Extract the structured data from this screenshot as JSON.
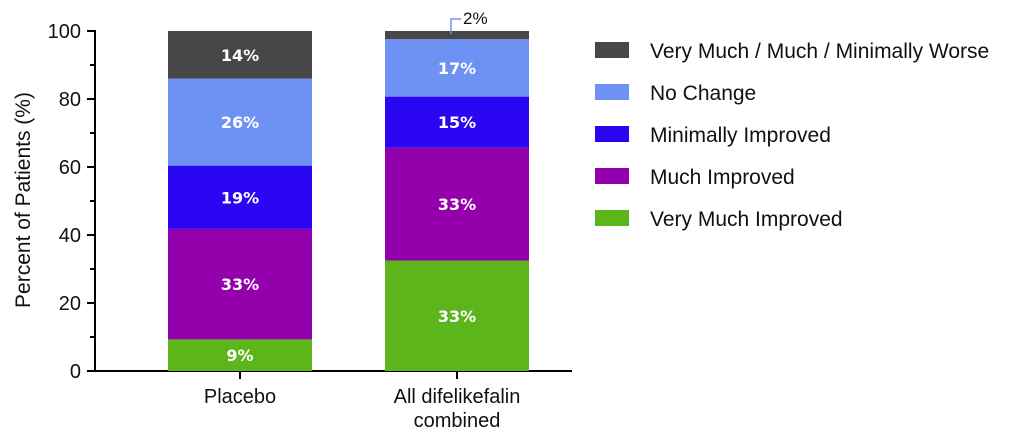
{
  "chart_data": {
    "type": "bar",
    "stacked": true,
    "orientation": "vertical",
    "ylabel": "Percent of Patients (%)",
    "ylim": [
      0,
      100
    ],
    "yticks": [
      0,
      20,
      40,
      60,
      80,
      100
    ],
    "categories": [
      [
        "Placebo"
      ],
      [
        "All difelikefalin",
        "combined"
      ]
    ],
    "series": [
      {
        "name": "Very Much Improved",
        "color": "#5db51c",
        "values": [
          9.3,
          32.5
        ],
        "labels": [
          "9%",
          "33%"
        ]
      },
      {
        "name": "Much Improved",
        "color": "#9400ac",
        "values": [
          32.5,
          33.2
        ],
        "labels": [
          "33%",
          "33%"
        ]
      },
      {
        "name": "Minimally Improved",
        "color": "#2b06f2",
        "values": [
          18.6,
          15.0
        ],
        "labels": [
          "19%",
          "15%"
        ]
      },
      {
        "name": "No Change",
        "color": "#6e92f4",
        "values": [
          25.6,
          16.9
        ],
        "labels": [
          "26%",
          "17%"
        ]
      },
      {
        "name": "Very Much / Much / Minimally Worse",
        "color": "#474747",
        "values": [
          14.0,
          2.4
        ],
        "labels": [
          "14%",
          "2%"
        ]
      }
    ],
    "callouts": [
      {
        "category_index": 1,
        "series_index": 4,
        "text": "2%"
      }
    ],
    "legend": {
      "position": "right",
      "order": [
        4,
        3,
        2,
        1,
        0
      ]
    }
  }
}
